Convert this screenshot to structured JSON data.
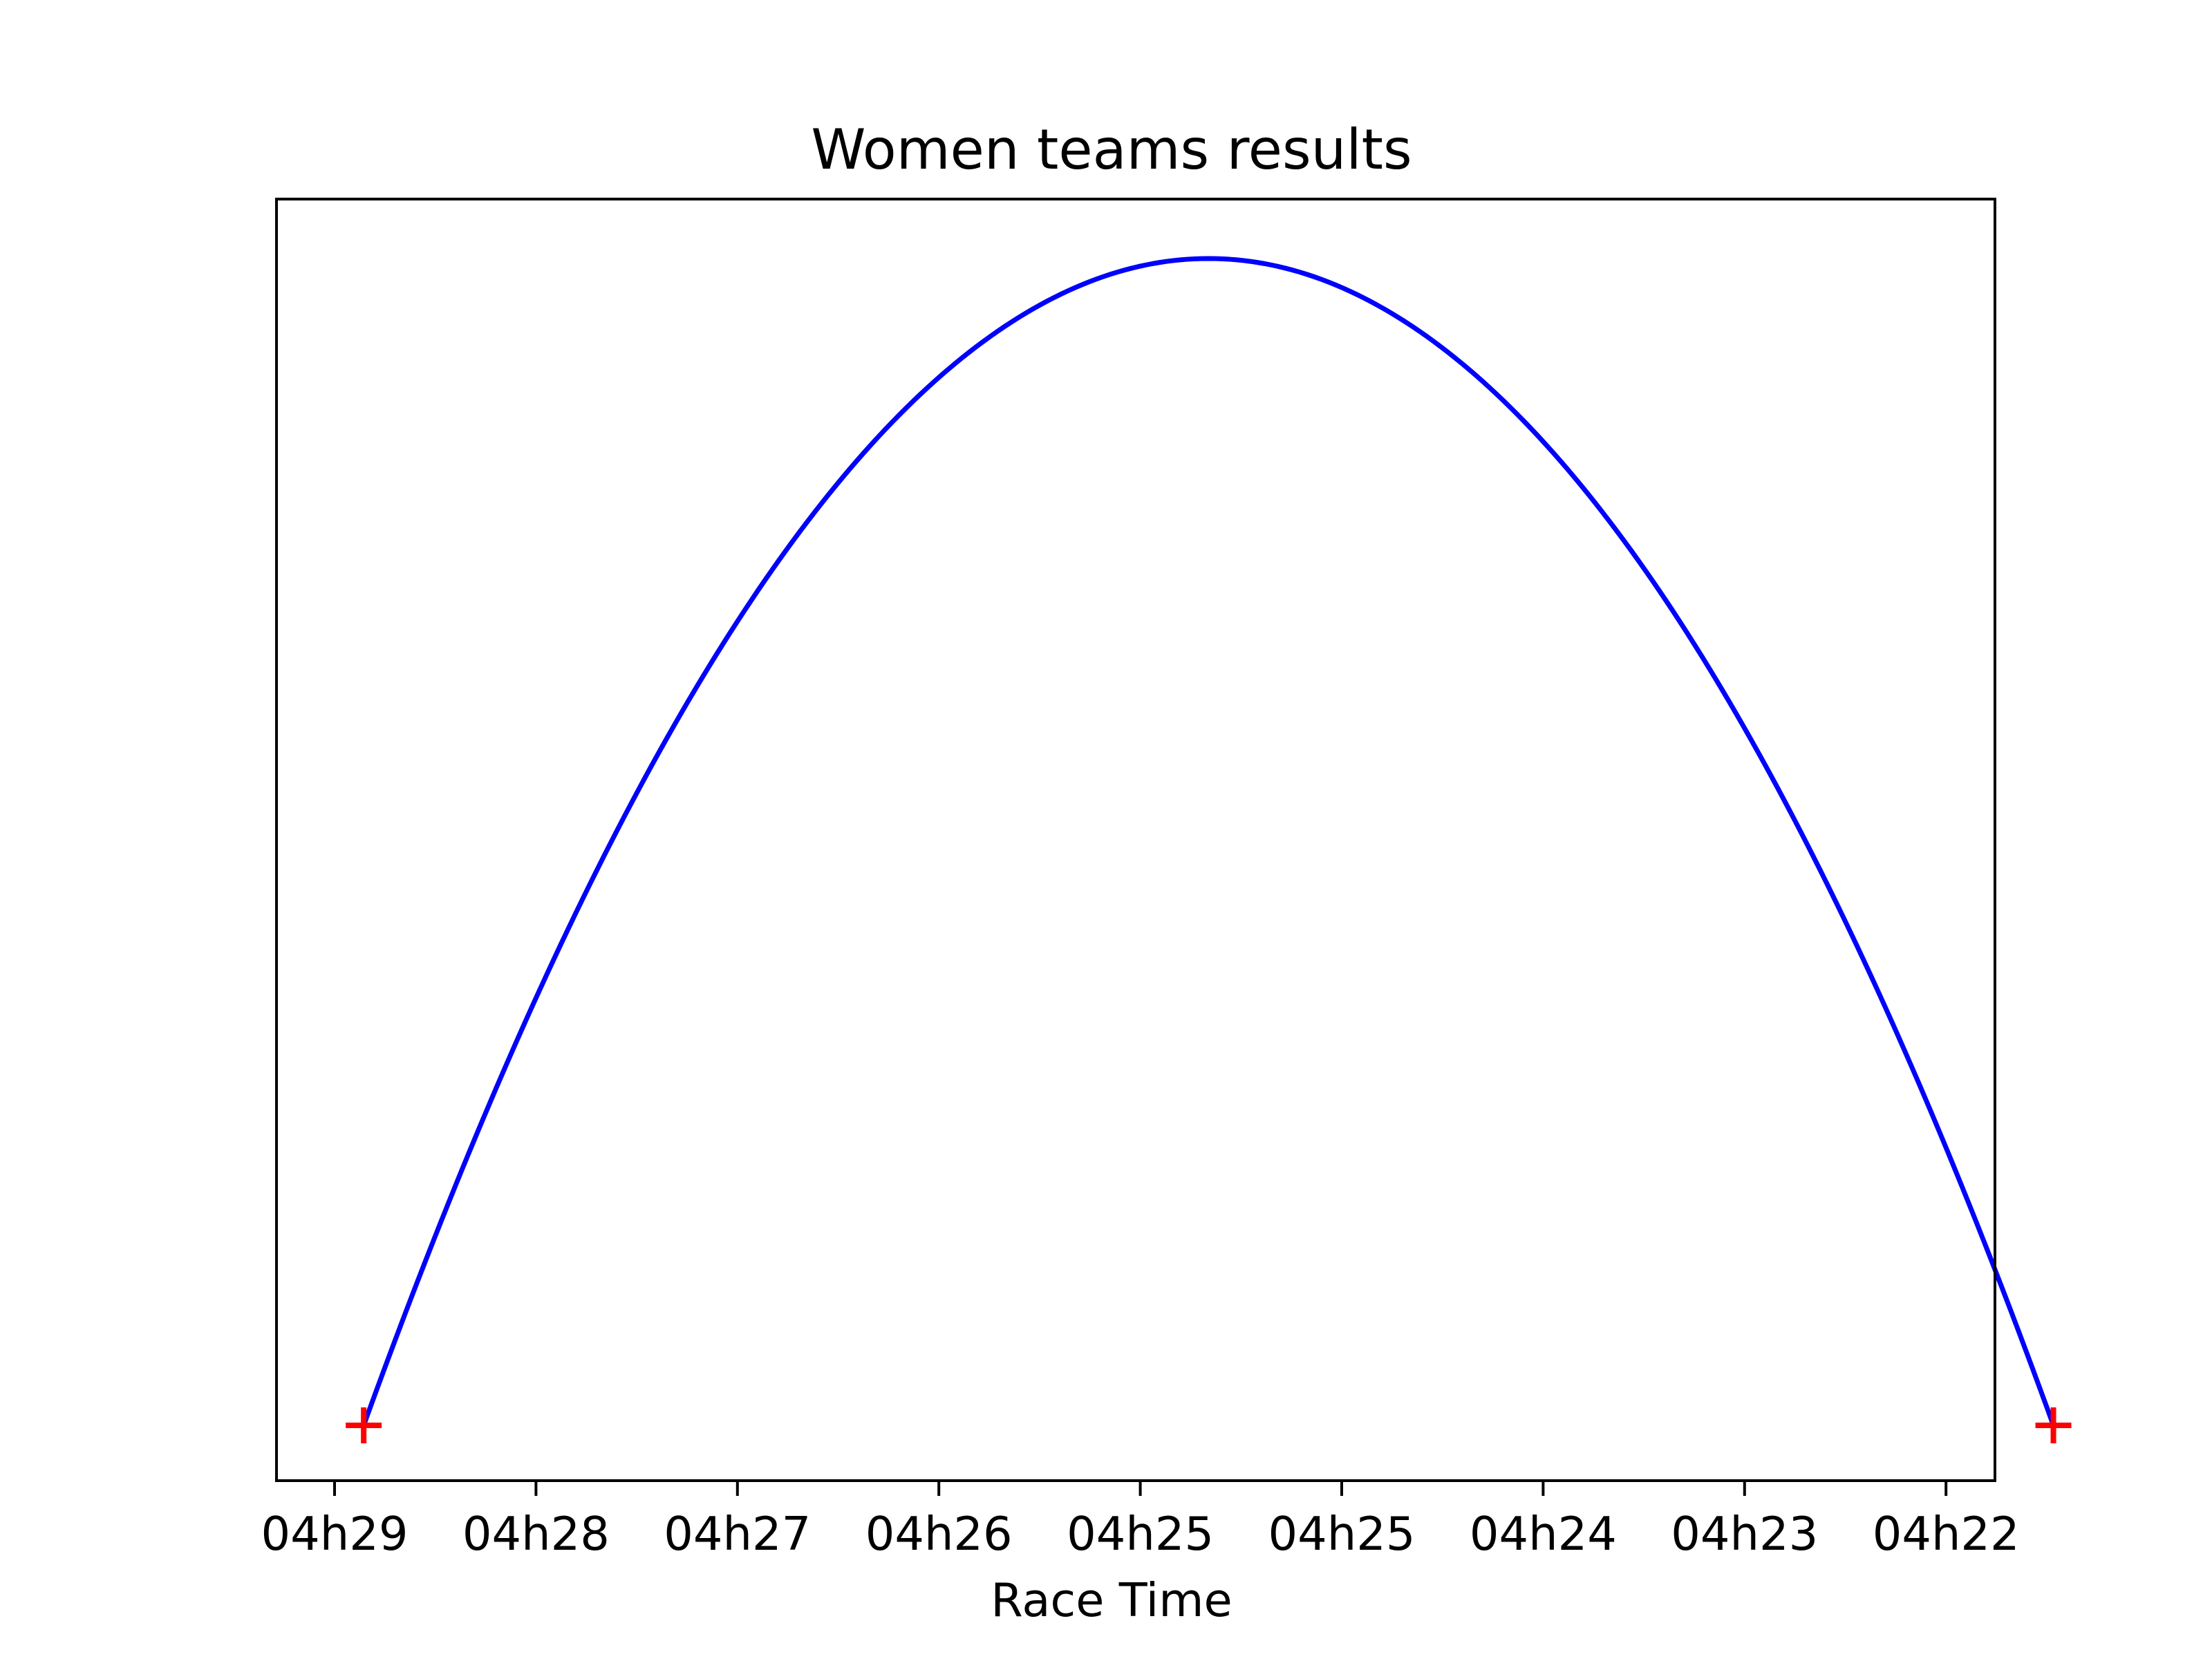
{
  "chart_data": {
    "type": "line",
    "title": "Women teams results",
    "xlabel": "Race Time",
    "ylabel": "",
    "x_tick_labels": [
      "04h29",
      "04h28",
      "04h27",
      "04h26",
      "04h25",
      "04h25",
      "04h24",
      "04h23",
      "04h22"
    ],
    "x_axis_inverted": true,
    "y_ticks_visible": false,
    "grid": false,
    "series": [
      {
        "kind": "curve",
        "color": "#0000ff",
        "start_time": "04h28m53s",
        "end_time": "04h22m07s",
        "peak_time": "04h25m30s",
        "shape": "parabolic-arc"
      },
      {
        "kind": "markers",
        "marker": "plus",
        "color": "#ff0000",
        "points": [
          "04h28m53s",
          "04h22m07s"
        ]
      }
    ]
  }
}
